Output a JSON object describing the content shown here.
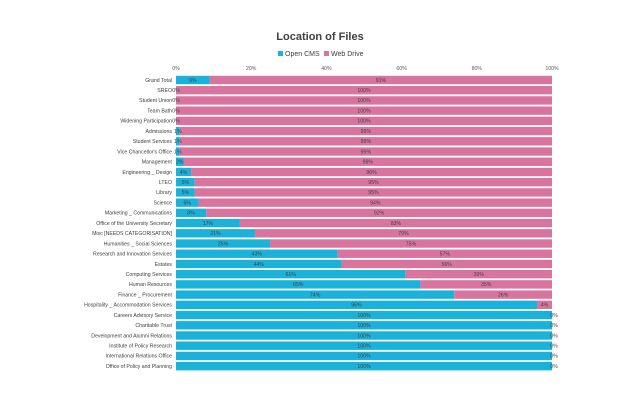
{
  "chart_data": {
    "type": "bar",
    "orientation": "horizontal",
    "stacked": "percent",
    "title": "Location of Files",
    "legend_position": "top",
    "xlabel": "",
    "ylabel": "",
    "xlim": [
      0,
      100
    ],
    "x_ticks": [
      "0%",
      "20%",
      "40%",
      "60%",
      "80%",
      "100%"
    ],
    "grid": false,
    "colors": {
      "Open CMS": "#1ab2da",
      "Web Drive": "#d9749f"
    },
    "categories": [
      "Grand Total",
      "SREO",
      "Student Union",
      "Team Bath",
      "Widening Participation",
      "Admissions",
      "Student Services",
      "Vice Chancellor's Office",
      "Management",
      "Engineering _ Design",
      "LTEO",
      "Library",
      "Science",
      "Marketing _ Communications",
      "Office of the University Secretary",
      "Misc [NEEDS CATEGORISATION]",
      "Humanities _ Social Sciences",
      "Research and Innovation Services",
      "Estates",
      "Computing Services",
      "Human Resources",
      "Finance _ Procurement",
      "Hospitality _ Accommodation Services",
      "Careers Advisory Service",
      "Charitable Trust",
      "Development and Alumni Relations",
      "Institute of Policy Research",
      "International Relations Office",
      "Office of Policy and Planning"
    ],
    "series": [
      {
        "name": "Open CMS",
        "values": [
          9,
          0,
          0,
          0,
          0,
          1,
          1,
          1,
          2,
          4,
          5,
          5,
          6,
          8,
          17,
          21,
          25,
          43,
          44,
          61,
          65,
          74,
          96,
          100,
          100,
          100,
          100,
          100,
          100
        ],
        "labels": [
          "9%",
          "0%",
          "0%",
          "0%",
          "0%",
          "1%",
          "1%",
          "1%",
          "2%",
          "4%",
          "5%",
          "5%",
          "6%",
          "8%",
          "17%",
          "21%",
          "25%",
          "43%",
          "44%",
          "61%",
          "65%",
          "74%",
          "96%",
          "100%",
          "100%",
          "100%",
          "100%",
          "100%",
          "100%"
        ]
      },
      {
        "name": "Web Drive",
        "values": [
          91,
          100,
          100,
          100,
          100,
          99,
          99,
          99,
          98,
          96,
          95,
          95,
          94,
          92,
          83,
          79,
          75,
          57,
          56,
          39,
          35,
          26,
          4,
          0,
          0,
          0,
          0,
          0,
          0
        ],
        "labels": [
          "91%",
          "100%",
          "100%",
          "100%",
          "100%",
          "99%",
          "99%",
          "99%",
          "98%",
          "96%",
          "95%",
          "95%",
          "94%",
          "92%",
          "83%",
          "79%",
          "75%",
          "57%",
          "56%",
          "39%",
          "35%",
          "26%",
          "4%",
          "0%",
          "0%",
          "0%",
          "0%",
          "0%",
          "0%"
        ]
      }
    ]
  }
}
